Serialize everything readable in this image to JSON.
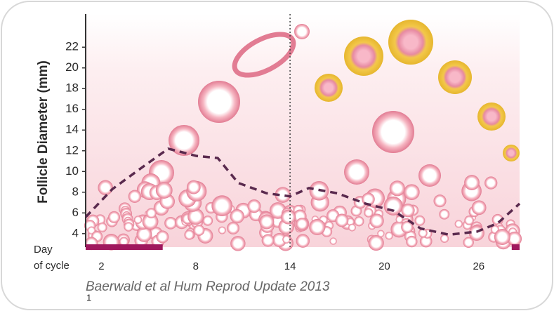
{
  "chart_data": {
    "type": "line",
    "y_label": "Follicle Diameter (mm)",
    "x_label_lines": [
      "Day",
      "of cycle"
    ],
    "citation": "Baerwald et al Hum Reprod Update 2013",
    "footnote": "1",
    "x": [
      1,
      2.7,
      4.5,
      6.25,
      8.05,
      9.4,
      10.7,
      12.5,
      14,
      15.2,
      17,
      18.8,
      20.6,
      22.3,
      24.1,
      25.9,
      27.2,
      28.6
    ],
    "series": [
      {
        "values": [
          5.6,
          8.3,
          10.3,
          12.2,
          11.5,
          11.3,
          8.9,
          7.9,
          7.6,
          8.4,
          7.9,
          6.9,
          6.2,
          4.5,
          3.9,
          4.2,
          5.0,
          6.9
        ],
        "color": "#5a2a4e",
        "dashed": true
      }
    ],
    "xlim": [
      1,
      28.6
    ],
    "xticks": [
      2,
      8,
      14,
      20,
      26
    ],
    "ylim": [
      2.7,
      25.2
    ],
    "yticks": [
      4,
      6,
      8,
      10,
      12,
      14,
      16,
      18,
      20,
      22
    ],
    "vline": 14,
    "highlight_ranges": [
      [
        1,
        5.9
      ],
      [
        28.1,
        28.6
      ]
    ],
    "highlight_color": "#a0185e"
  }
}
